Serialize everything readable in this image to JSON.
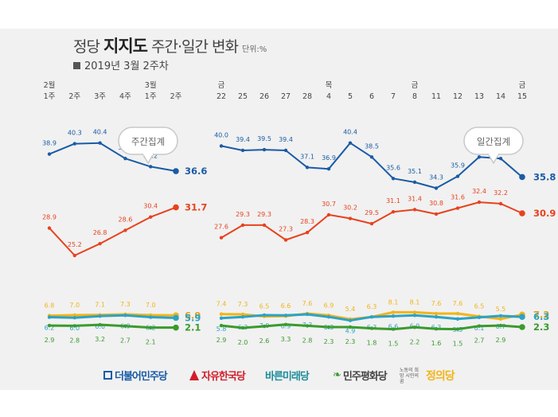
{
  "header": {
    "title_normal": "정당 ",
    "title_bold": "지지도",
    "title_rest": " 주간·일간 변화",
    "unit": "단위:%",
    "subtitle": "2019년 3월 2주차"
  },
  "bubbles": {
    "weekly": "주간집계",
    "daily": "일간집계"
  },
  "legend": [
    {
      "label": "더불어민주당",
      "color": "#1a5ba6",
      "icon": "square-flag-icon"
    },
    {
      "label": "자유한국당",
      "color": "#d21e2b",
      "icon": "torch-icon"
    },
    {
      "label": "바른미래당",
      "color": "#1c8c9a",
      "icon": ""
    },
    {
      "label": "민주평화당",
      "color": "#444444",
      "icon": "sprout-icon"
    },
    {
      "label": "노동의 희망 시민의 꿈",
      "color": "#555555",
      "icon": ""
    },
    {
      "label": "정의당",
      "color": "#f2b418",
      "icon": ""
    }
  ],
  "chart_data": [
    {
      "type": "line",
      "title": "주간집계",
      "categories": [
        "2월\n1주",
        "2주",
        "3주",
        "4주",
        "3월\n1주",
        "2주"
      ],
      "ylim": [
        0,
        45
      ],
      "grid": false,
      "series": [
        {
          "name": "더불어민주당",
          "color": "#1a5ba6",
          "values": [
            38.9,
            40.3,
            40.4,
            38.3,
            37.2,
            36.6
          ]
        },
        {
          "name": "자유한국당",
          "color": "#e8421e",
          "values": [
            28.9,
            25.2,
            26.8,
            28.6,
            30.4,
            31.7
          ]
        },
        {
          "name": "정의당",
          "color": "#f2b418",
          "values": [
            6.8,
            7.0,
            7.1,
            7.3,
            7.0,
            6.9
          ]
        },
        {
          "name": "바른미래당",
          "color": "#2ba3c4",
          "values": [
            6.2,
            6.0,
            6.6,
            6.9,
            6.2,
            5.9
          ]
        },
        {
          "name": "민주평화당",
          "color": "#3a9b2c",
          "values": [
            2.9,
            2.8,
            3.2,
            2.7,
            2.1,
            2.1
          ]
        }
      ]
    },
    {
      "type": "line",
      "title": "일간집계",
      "categories": [
        "금\n22",
        "25",
        "26",
        "27",
        "28",
        "목\n4",
        "5",
        "6",
        "7",
        "금\n8",
        "11",
        "12",
        "13",
        "14",
        "금\n15"
      ],
      "ylim": [
        0,
        45
      ],
      "grid": false,
      "series": [
        {
          "name": "더불어민주당",
          "color": "#1a5ba6",
          "values": [
            40.0,
            39.4,
            39.5,
            39.4,
            37.1,
            36.9,
            40.4,
            38.5,
            35.6,
            35.1,
            34.3,
            35.9,
            38.5,
            38.3,
            35.8
          ]
        },
        {
          "name": "자유한국당",
          "color": "#e8421e",
          "values": [
            27.6,
            29.3,
            29.3,
            27.3,
            28.3,
            30.7,
            30.2,
            29.5,
            31.1,
            31.4,
            30.8,
            31.6,
            32.4,
            32.2,
            30.9
          ]
        },
        {
          "name": "정의당",
          "color": "#f2b418",
          "values": [
            7.4,
            7.3,
            6.5,
            6.6,
            7.6,
            6.9,
            5.4,
            6.3,
            8.1,
            8.1,
            7.6,
            7.6,
            6.5,
            5.5,
            7.2
          ]
        },
        {
          "name": "바른미래당",
          "color": "#2ba3c4",
          "values": [
            5.8,
            6.3,
            7.0,
            6.9,
            7.3,
            6.3,
            4.9,
            6.3,
            6.6,
            6.9,
            6.3,
            5.5,
            6.1,
            6.7,
            6.3
          ]
        },
        {
          "name": "민주평화당",
          "color": "#3a9b2c",
          "values": [
            2.9,
            2.0,
            2.6,
            3.3,
            2.8,
            2.3,
            2.3,
            1.8,
            1.5,
            2.2,
            1.6,
            1.5,
            2.7,
            2.9,
            2.3
          ]
        }
      ]
    }
  ]
}
